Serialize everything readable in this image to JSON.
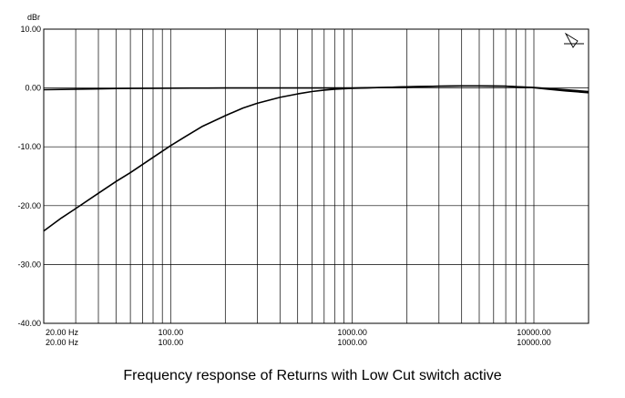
{
  "chart_data": {
    "type": "line",
    "title": "Frequency response of Returns with Low Cut switch active",
    "ylabel": "dBr",
    "xscale": "log",
    "xlim": [
      20,
      20000
    ],
    "ylim": [
      -40,
      10
    ],
    "grid": true,
    "y_ticks": [
      {
        "value": 10,
        "label": "10.00"
      },
      {
        "value": 0,
        "label": "0.00"
      },
      {
        "value": -10,
        "label": "-10.00"
      },
      {
        "value": -20,
        "label": "-20.00"
      },
      {
        "value": -30,
        "label": "-30.00"
      },
      {
        "value": -40,
        "label": "-40.00"
      }
    ],
    "x_ticks": [
      {
        "value": 20,
        "label": "20.00 Hz",
        "label2": "20.00 Hz"
      },
      {
        "value": 100,
        "label": "100.00",
        "label2": "100.00"
      },
      {
        "value": 1000,
        "label": "1000.00",
        "label2": "1000.00"
      },
      {
        "value": 10000,
        "label": "10000.00",
        "label2": "10000.00"
      }
    ],
    "series": [
      {
        "x": [
          20,
          25,
          30,
          40,
          50,
          60,
          80,
          100,
          130,
          160,
          200,
          250,
          300,
          400,
          500,
          600,
          700,
          800,
          1000,
          1200,
          1500,
          2000,
          3000,
          4000,
          5000,
          7000,
          10000,
          12000,
          15000,
          20000
        ],
        "y": [
          -0.3,
          -0.25,
          -0.2,
          -0.15,
          -0.1,
          -0.08,
          -0.05,
          -0.03,
          -0.02,
          -0.01,
          0,
          0,
          0,
          0,
          0,
          0,
          0,
          0,
          0,
          0.05,
          0.1,
          0.2,
          0.3,
          0.35,
          0.35,
          0.3,
          0.1,
          -0.1,
          -0.3,
          -0.6
        ],
        "color": "#000000"
      },
      {
        "x": [
          20,
          25,
          30,
          40,
          50,
          60,
          70,
          80,
          100,
          120,
          150,
          200,
          250,
          300,
          400,
          500,
          600,
          700,
          800,
          1000,
          1200,
          1500,
          2000,
          3000,
          4000,
          5000,
          7000,
          10000,
          12000,
          15000,
          20000
        ],
        "y": [
          -24.3,
          -22.1,
          -20.5,
          -17.9,
          -15.9,
          -14.4,
          -13.0,
          -11.8,
          -9.8,
          -8.3,
          -6.5,
          -4.7,
          -3.4,
          -2.6,
          -1.6,
          -1.0,
          -0.6,
          -0.35,
          -0.2,
          -0.05,
          0,
          0.1,
          0.2,
          0.3,
          0.35,
          0.35,
          0.3,
          0.05,
          -0.2,
          -0.5,
          -0.8
        ],
        "color": "#000000"
      }
    ]
  },
  "caption": "Frequency response of Returns with Low Cut switch active"
}
